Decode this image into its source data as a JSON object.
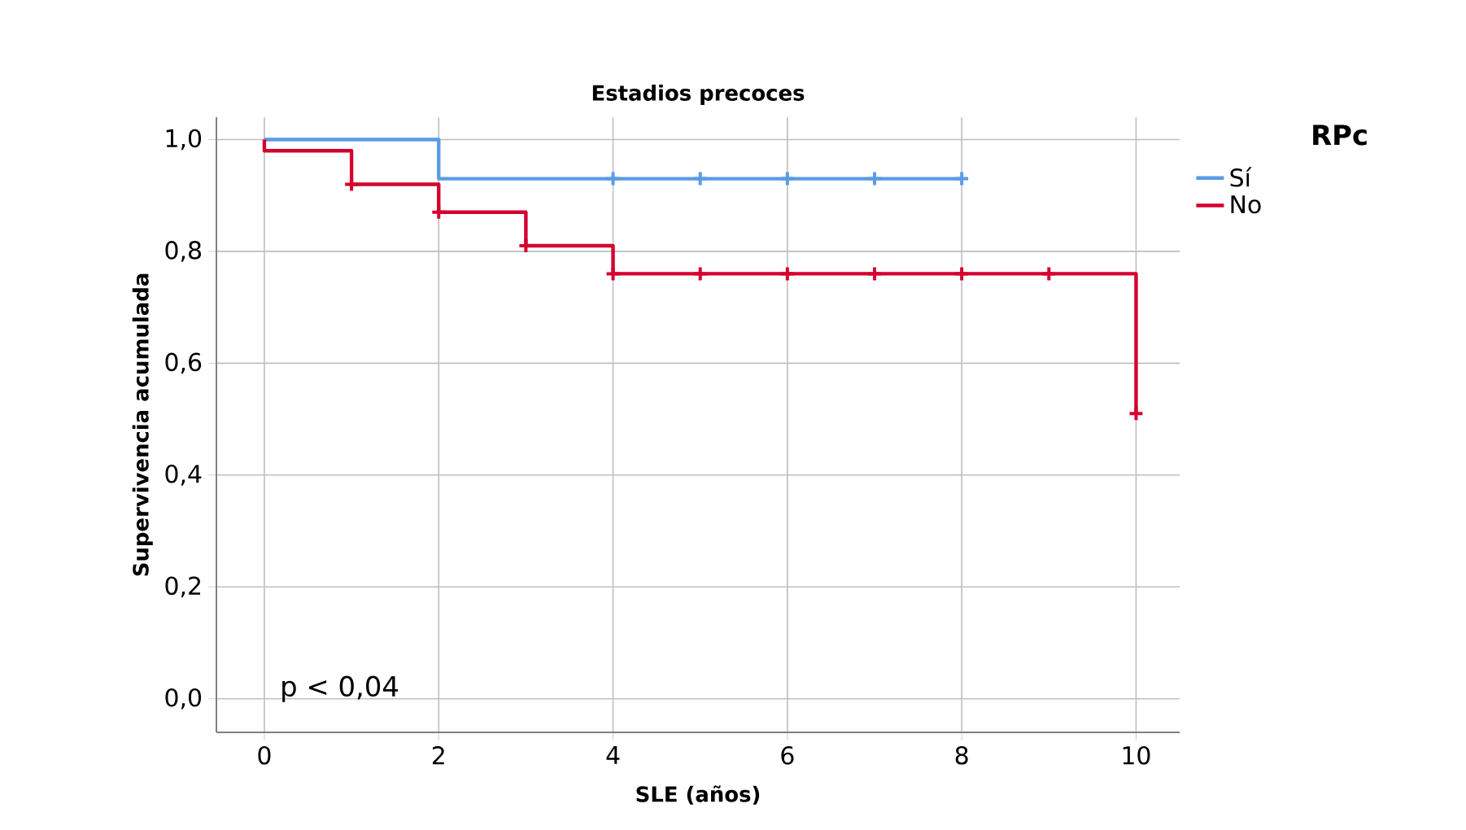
{
  "chart_data": {
    "type": "step",
    "title": "Estadios precoces",
    "xlabel": "SLE (años)",
    "ylabel": "Supervivencia acumulada",
    "legend_title": "RPc",
    "series": [
      {
        "name": "Sí",
        "color": "#5b9be6",
        "x": [
          0,
          2,
          8
        ],
        "values": [
          1.0,
          0.93,
          0.93
        ]
      },
      {
        "name": "No",
        "color": "#d4002f",
        "x": [
          0,
          0,
          1,
          2,
          3,
          4,
          10
        ],
        "values": [
          1.0,
          0.98,
          0.92,
          0.87,
          0.81,
          0.76,
          0.51
        ]
      },
      {
        "type": "scatter",
        "marker": "cross",
        "color": "#5b9be6",
        "x": [
          4,
          5,
          6,
          7,
          8
        ],
        "values": [
          0.93,
          0.93,
          0.93,
          0.93,
          0.93
        ]
      },
      {
        "type": "scatter",
        "marker": "cross",
        "color": "#d4002f",
        "x": [
          1,
          2,
          3,
          4,
          5,
          6,
          7,
          8,
          9,
          10
        ],
        "values": [
          0.92,
          0.87,
          0.81,
          0.76,
          0.76,
          0.76,
          0.76,
          0.76,
          0.76,
          0.51
        ]
      }
    ],
    "xlim": [
      -0.55,
      10.5
    ],
    "ylim": [
      -0.06,
      1.04
    ],
    "xticks": [
      0,
      2,
      4,
      6,
      8,
      10
    ],
    "yticks": [
      {
        "value": 0,
        "label": "0,0"
      },
      {
        "value": 0.2,
        "label": "0,2"
      },
      {
        "value": 0.4,
        "label": "0,4"
      },
      {
        "value": 0.6,
        "label": "0,6"
      },
      {
        "value": 0.8,
        "label": "0,8"
      },
      {
        "value": 1.0,
        "label": "1,0"
      }
    ],
    "grid": true,
    "legend": "top right",
    "annotations": [
      "p < 0,04"
    ]
  }
}
